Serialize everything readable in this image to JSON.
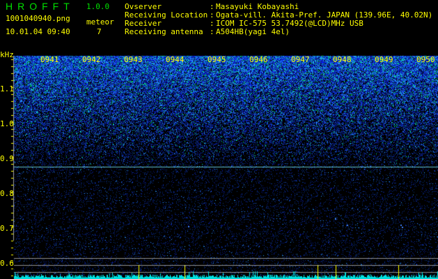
{
  "header": {
    "title": "HROFFT",
    "version": "1.0.0",
    "filename": "1001040940.png",
    "datetime": "10.01.04 09:40",
    "meteor_label": "meteor",
    "meteor_count": "7"
  },
  "info": [
    {
      "label": "Ovserver",
      "value": "Masayuki Kobayashi"
    },
    {
      "label": "Receiving Location",
      "value": "Ogata-vill. Akita-Pref. JAPAN (139.96E, 40.02N)"
    },
    {
      "label": "Receiver",
      "value": "ICOM IC-575 53.7492(@LCD)MHz USB"
    },
    {
      "label": "Receiving antenna",
      "value": "A504HB(yagi 4el)"
    }
  ],
  "spectrogram": {
    "y_unit": "kHz",
    "y_ticks": [
      "1.1",
      "1.0",
      "0.9",
      "0.8",
      "0.7",
      "0.6"
    ],
    "time_ticks": [
      "0941",
      "0942",
      "0943",
      "0944",
      "0945",
      "0946",
      "0947",
      "0948",
      "0949",
      "0950"
    ],
    "colors": {
      "text": "#ffff00",
      "title": "#00e000",
      "spectrum": "#00e0e0",
      "noise": "#1020c0"
    }
  }
}
